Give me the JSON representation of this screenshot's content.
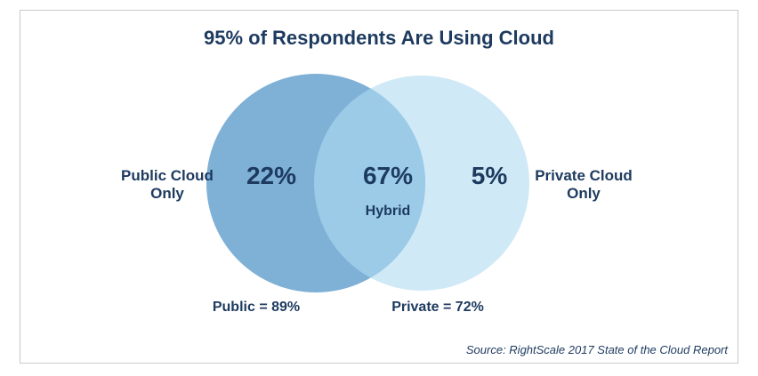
{
  "title": "95% of Respondents Are Using Cloud",
  "venn": {
    "public_only_label_line1": "Public Cloud",
    "public_only_label_line2": "Only",
    "private_only_label_line1": "Private Cloud",
    "private_only_label_line2": "Only",
    "public_only_pct": "22%",
    "hybrid_pct": "67%",
    "hybrid_label": "Hybrid",
    "private_only_pct": "5%",
    "public_total": "Public = 89%",
    "private_total": "Private = 72%",
    "colors": {
      "public_circle": "#7fb0d6",
      "private_circle": "#cfe9f6",
      "overlap": "#9ccbe8",
      "text": "#1d3a5f"
    }
  },
  "source": "Source: RightScale 2017 State of the Cloud Report"
}
